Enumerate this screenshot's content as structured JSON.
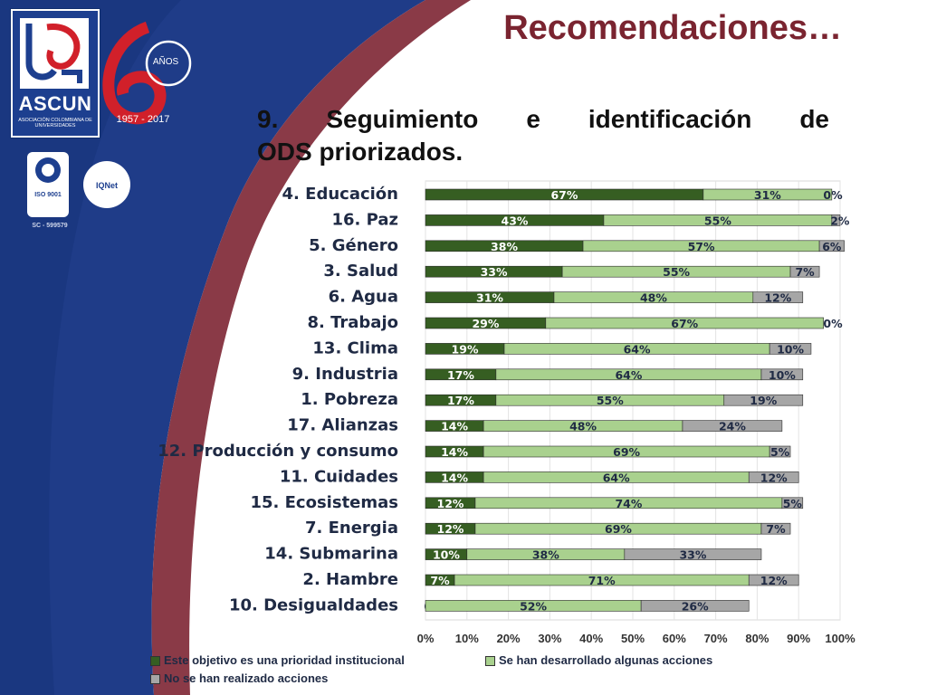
{
  "header": {
    "title": "Recomendaciones…",
    "subtitle_line1": "9. Seguimiento e identificación de",
    "subtitle_line2": "ODS priorizados."
  },
  "branding": {
    "logo_text": "ASCUN",
    "logo_subtext": "ASOCIACIÓN COLOMBIANA DE UNIVERSIDADES",
    "anniversary_years": "1957 - 2017",
    "anniversary_label": "AÑOS",
    "cert1_label": "ISO 9001",
    "cert1_brand": "icontec",
    "cert2_label": "IQNet",
    "cert_code": "SC - 599579",
    "colors": {
      "navy": "#1d3f8f",
      "maroon": "#7a2430",
      "red": "#d1202a"
    }
  },
  "chart_data": {
    "type": "bar",
    "orientation": "horizontal",
    "stacked": "100%",
    "categories": [
      "4. Educación",
      "16. Paz",
      "5. Género",
      "3. Salud",
      "6. Agua",
      "8. Trabajo",
      "13. Clima",
      "9. Industria",
      "1. Pobreza",
      "17. Alianzas",
      "12. Producción y consumo",
      "11. Cuidades",
      "15. Ecosistemas",
      "7. Energia",
      "14. Submarina",
      "2. Hambre",
      "10. Desigualdades"
    ],
    "series": [
      {
        "name": "Este objetivo es una prioridad institucional",
        "color": "#365e22",
        "values": [
          67,
          43,
          38,
          33,
          31,
          29,
          19,
          17,
          17,
          14,
          14,
          14,
          12,
          12,
          10,
          7,
          0
        ],
        "labels": [
          "67%",
          "43%",
          "38%",
          "33%",
          "31%",
          "29%",
          "19%",
          "17%",
          "17%",
          "14%",
          "14%",
          "14%",
          "12%",
          "12%",
          "10%",
          "7%",
          "0%"
        ]
      },
      {
        "name": "Se han desarrollado algunas acciones",
        "color": "#a9d18e",
        "values": [
          31,
          55,
          57,
          55,
          48,
          67,
          64,
          64,
          55,
          48,
          69,
          64,
          74,
          69,
          38,
          71,
          52
        ],
        "labels": [
          "31%",
          "55%",
          "57%",
          "55%",
          "48%",
          "67%",
          "64%",
          "64%",
          "55%",
          "48%",
          "69%",
          "64%",
          "74%",
          "69%",
          "38%",
          "71%",
          "52%"
        ]
      },
      {
        "name": "No se han realizado acciones",
        "color": "#a6a6a6",
        "values": [
          0,
          2,
          6,
          7,
          12,
          0,
          10,
          10,
          19,
          24,
          5,
          12,
          5,
          7,
          33,
          12,
          26
        ],
        "labels": [
          "0%",
          "2%",
          "6%",
          "7%",
          "12%",
          "0%",
          "10%",
          "10%",
          "19%",
          "24%",
          "5%",
          "12%",
          "5%",
          "7%",
          "33%",
          "12%",
          "26%"
        ]
      }
    ],
    "x_ticks": [
      "0%",
      "10%",
      "20%",
      "30%",
      "40%",
      "50%",
      "60%",
      "70%",
      "80%",
      "90%",
      "100%"
    ],
    "xlim": [
      0,
      100
    ],
    "legend_position": "bottom",
    "grid": true
  }
}
